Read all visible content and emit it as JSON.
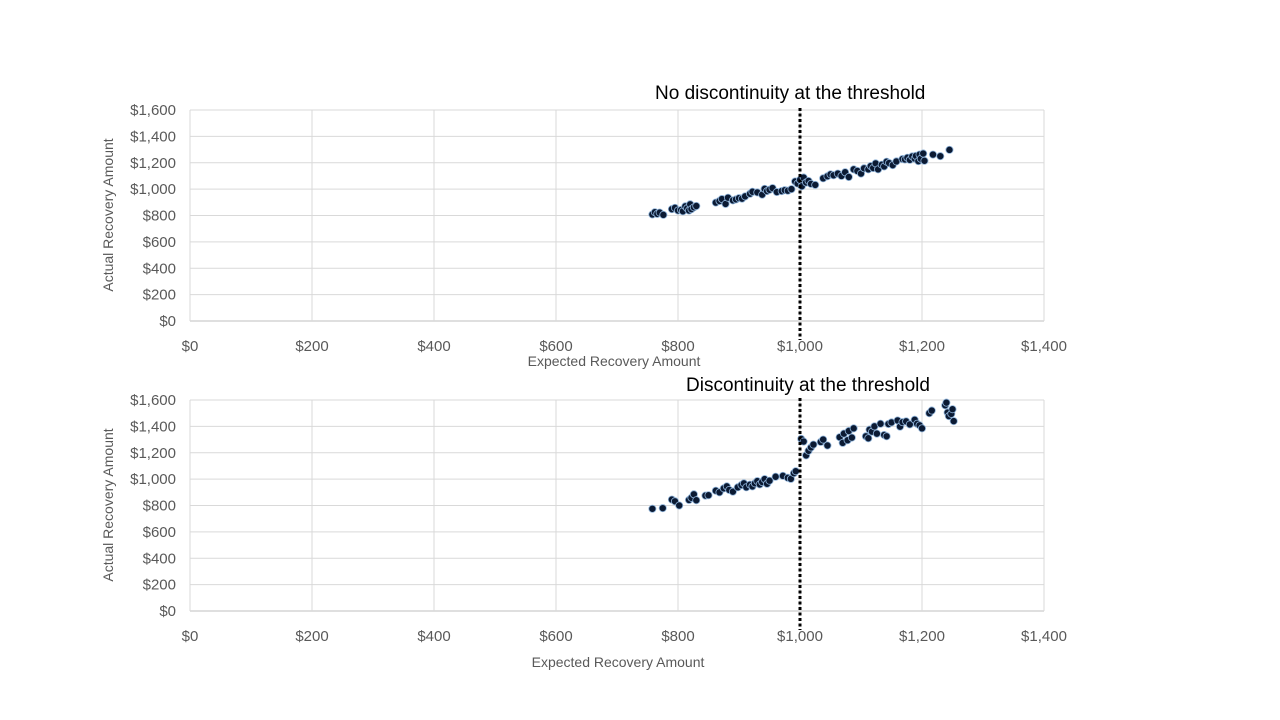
{
  "chart_data": [
    {
      "type": "scatter",
      "title": "",
      "xlabel": "Expected Recovery Amount",
      "ylabel": "Actual Recovery Amount",
      "annotation": "No discontinuity at the threshold",
      "threshold": 1000,
      "xlim": [
        0,
        1400
      ],
      "ylim": [
        0,
        1600
      ],
      "x_ticks": [
        "$0",
        "$200",
        "$400",
        "$600",
        "$800",
        "$1,000",
        "$1,200",
        "$1,400"
      ],
      "y_ticks": [
        "$0",
        "$200",
        "$400",
        "$600",
        "$800",
        "$1,000",
        "$1,200",
        "$1,400",
        "$1,600"
      ],
      "grid": true,
      "points": [
        [
          758,
          808
        ],
        [
          762,
          825
        ],
        [
          766,
          812
        ],
        [
          770,
          822
        ],
        [
          776,
          805
        ],
        [
          790,
          848
        ],
        [
          795,
          858
        ],
        [
          800,
          838
        ],
        [
          805,
          842
        ],
        [
          808,
          832
        ],
        [
          812,
          870
        ],
        [
          815,
          855
        ],
        [
          818,
          838
        ],
        [
          820,
          885
        ],
        [
          822,
          848
        ],
        [
          826,
          862
        ],
        [
          830,
          872
        ],
        [
          862,
          898
        ],
        [
          868,
          910
        ],
        [
          872,
          925
        ],
        [
          878,
          888
        ],
        [
          882,
          935
        ],
        [
          890,
          915
        ],
        [
          895,
          922
        ],
        [
          900,
          932
        ],
        [
          905,
          928
        ],
        [
          910,
          945
        ],
        [
          918,
          965
        ],
        [
          922,
          980
        ],
        [
          930,
          975
        ],
        [
          938,
          958
        ],
        [
          942,
          1002
        ],
        [
          946,
          985
        ],
        [
          950,
          995
        ],
        [
          955,
          1008
        ],
        [
          962,
          978
        ],
        [
          970,
          985
        ],
        [
          975,
          992
        ],
        [
          980,
          988
        ],
        [
          986,
          1000
        ],
        [
          992,
          1058
        ],
        [
          996,
          1042
        ],
        [
          1000,
          1070
        ],
        [
          1003,
          1022
        ],
        [
          1006,
          1088
        ],
        [
          1010,
          1050
        ],
        [
          1014,
          1062
        ],
        [
          1018,
          1040
        ],
        [
          1025,
          1032
        ],
        [
          1038,
          1082
        ],
        [
          1045,
          1098
        ],
        [
          1050,
          1112
        ],
        [
          1055,
          1105
        ],
        [
          1062,
          1118
        ],
        [
          1068,
          1100
        ],
        [
          1074,
          1128
        ],
        [
          1080,
          1092
        ],
        [
          1088,
          1150
        ],
        [
          1094,
          1138
        ],
        [
          1100,
          1118
        ],
        [
          1105,
          1158
        ],
        [
          1112,
          1150
        ],
        [
          1116,
          1175
        ],
        [
          1120,
          1160
        ],
        [
          1124,
          1195
        ],
        [
          1128,
          1150
        ],
        [
          1134,
          1185
        ],
        [
          1138,
          1172
        ],
        [
          1142,
          1208
        ],
        [
          1146,
          1198
        ],
        [
          1152,
          1182
        ],
        [
          1158,
          1210
        ],
        [
          1168,
          1228
        ],
        [
          1172,
          1225
        ],
        [
          1176,
          1238
        ],
        [
          1180,
          1222
        ],
        [
          1184,
          1248
        ],
        [
          1188,
          1232
        ],
        [
          1190,
          1252
        ],
        [
          1194,
          1212
        ],
        [
          1196,
          1262
        ],
        [
          1198,
          1230
        ],
        [
          1202,
          1270
        ],
        [
          1204,
          1215
        ],
        [
          1218,
          1262
        ],
        [
          1230,
          1250
        ],
        [
          1245,
          1298
        ]
      ]
    },
    {
      "type": "scatter",
      "title": "",
      "xlabel": "Expected Recovery Amount",
      "ylabel": "Actual Recovery Amount",
      "annotation": "Discontinuity at the threshold",
      "threshold": 1000,
      "xlim": [
        0,
        1400
      ],
      "ylim": [
        0,
        1600
      ],
      "x_ticks": [
        "$0",
        "$200",
        "$400",
        "$600",
        "$800",
        "$1,000",
        "$1,200",
        "$1,400"
      ],
      "y_ticks": [
        "$0",
        "$200",
        "$400",
        "$600",
        "$800",
        "$1,000",
        "$1,200",
        "$1,400",
        "$1,600"
      ],
      "grid": true,
      "points": [
        [
          758,
          775
        ],
        [
          775,
          780
        ],
        [
          790,
          845
        ],
        [
          795,
          832
        ],
        [
          802,
          800
        ],
        [
          818,
          842
        ],
        [
          822,
          858
        ],
        [
          826,
          885
        ],
        [
          830,
          840
        ],
        [
          845,
          875
        ],
        [
          850,
          878
        ],
        [
          862,
          912
        ],
        [
          868,
          900
        ],
        [
          875,
          930
        ],
        [
          880,
          945
        ],
        [
          884,
          918
        ],
        [
          890,
          905
        ],
        [
          898,
          938
        ],
        [
          904,
          955
        ],
        [
          908,
          968
        ],
        [
          912,
          938
        ],
        [
          918,
          958
        ],
        [
          922,
          945
        ],
        [
          926,
          968
        ],
        [
          930,
          985
        ],
        [
          934,
          960
        ],
        [
          938,
          978
        ],
        [
          942,
          1000
        ],
        [
          946,
          965
        ],
        [
          950,
          988
        ],
        [
          960,
          1018
        ],
        [
          972,
          1025
        ],
        [
          980,
          1010
        ],
        [
          985,
          1002
        ],
        [
          990,
          1045
        ],
        [
          993,
          1060
        ],
        [
          1002,
          1305
        ],
        [
          1006,
          1285
        ],
        [
          1010,
          1180
        ],
        [
          1014,
          1215
        ],
        [
          1018,
          1240
        ],
        [
          1022,
          1262
        ],
        [
          1034,
          1282
        ],
        [
          1038,
          1300
        ],
        [
          1045,
          1255
        ],
        [
          1065,
          1318
        ],
        [
          1070,
          1275
        ],
        [
          1072,
          1345
        ],
        [
          1078,
          1295
        ],
        [
          1080,
          1365
        ],
        [
          1085,
          1315
        ],
        [
          1088,
          1385
        ],
        [
          1108,
          1325
        ],
        [
          1112,
          1310
        ],
        [
          1114,
          1375
        ],
        [
          1118,
          1360
        ],
        [
          1122,
          1400
        ],
        [
          1126,
          1345
        ],
        [
          1132,
          1420
        ],
        [
          1138,
          1335
        ],
        [
          1142,
          1325
        ],
        [
          1145,
          1418
        ],
        [
          1150,
          1430
        ],
        [
          1160,
          1445
        ],
        [
          1164,
          1398
        ],
        [
          1168,
          1432
        ],
        [
          1174,
          1438
        ],
        [
          1180,
          1415
        ],
        [
          1188,
          1450
        ],
        [
          1192,
          1420
        ],
        [
          1196,
          1408
        ],
        [
          1200,
          1385
        ],
        [
          1212,
          1500
        ],
        [
          1216,
          1520
        ],
        [
          1238,
          1560
        ],
        [
          1240,
          1580
        ],
        [
          1242,
          1505
        ],
        [
          1244,
          1478
        ],
        [
          1248,
          1495
        ],
        [
          1250,
          1530
        ],
        [
          1252,
          1440
        ]
      ]
    }
  ]
}
